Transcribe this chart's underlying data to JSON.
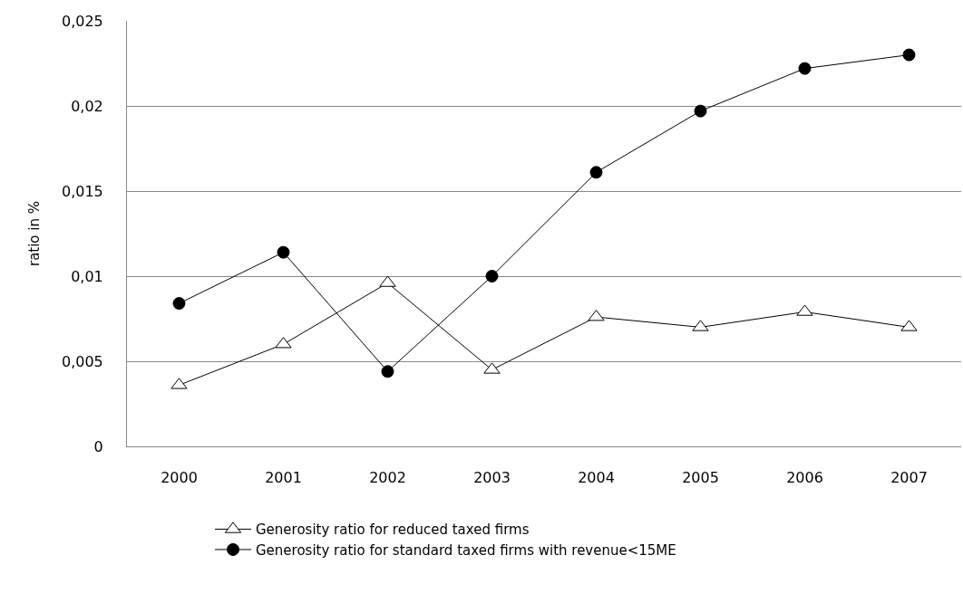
{
  "chart_data": {
    "type": "line",
    "ylabel": "ratio in %",
    "categories": [
      "2000",
      "2001",
      "2002",
      "2003",
      "2004",
      "2005",
      "2006",
      "2007"
    ],
    "series": [
      {
        "name": "Generosity ratio for reduced taxed firms",
        "color": "#000000",
        "marker": "triangle",
        "values": [
          0.0036,
          0.006,
          0.0096,
          0.0045,
          0.0076,
          0.007,
          0.0079,
          0.007
        ]
      },
      {
        "name": "Generosity ratio for standard taxed firms with revenue<15ME",
        "color": "#000000",
        "marker": "circle",
        "values": [
          0.0084,
          0.0114,
          0.0044,
          0.01,
          0.0161,
          0.0197,
          0.0222,
          0.023
        ]
      }
    ],
    "ylim": [
      0,
      0.025
    ],
    "yticks": [
      {
        "value": 0,
        "label": "0"
      },
      {
        "value": 0.005,
        "label": "0,005"
      },
      {
        "value": 0.01,
        "label": "0,01"
      },
      {
        "value": 0.015,
        "label": "0,015"
      },
      {
        "value": 0.02,
        "label": "0,02"
      },
      {
        "value": 0.025,
        "label": "0,025"
      }
    ],
    "grid": "y",
    "legend": "bottom left",
    "line_style": "solid"
  }
}
